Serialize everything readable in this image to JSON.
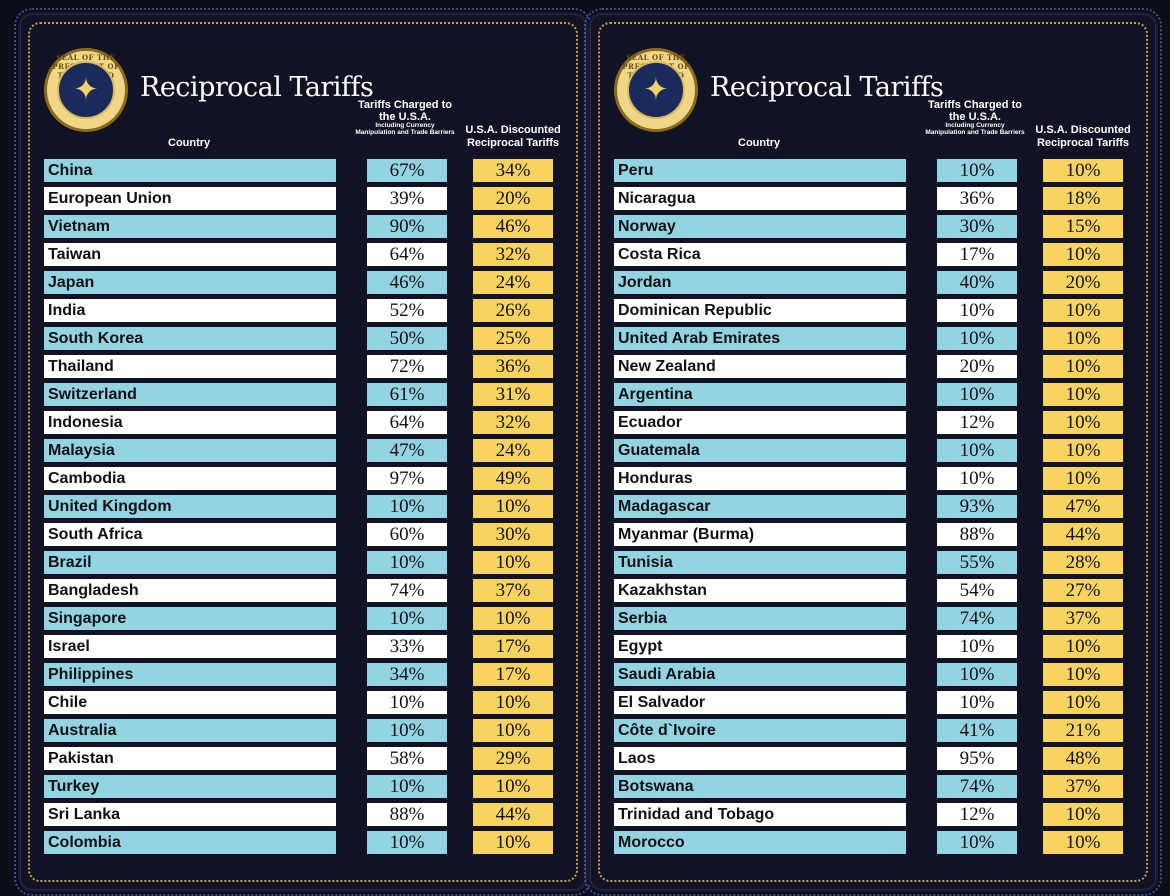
{
  "panels": [
    {
      "seal_text": "SEAL OF THE PRESIDENT OF THE UNITED STATES",
      "title": "Reciprocal Tariffs",
      "header": {
        "country": "Country",
        "charged_main": "Tariffs Charged to the U.S.A.",
        "charged_sub": "Including Currency Manipulation and Trade Barriers",
        "reciprocal": "U.S.A. Discounted Reciprocal Tariffs"
      },
      "rows": [
        {
          "country": "China",
          "charged": "67%",
          "reciprocal": "34%"
        },
        {
          "country": "European Union",
          "charged": "39%",
          "reciprocal": "20%"
        },
        {
          "country": "Vietnam",
          "charged": "90%",
          "reciprocal": "46%"
        },
        {
          "country": "Taiwan",
          "charged": "64%",
          "reciprocal": "32%"
        },
        {
          "country": "Japan",
          "charged": "46%",
          "reciprocal": "24%"
        },
        {
          "country": "India",
          "charged": "52%",
          "reciprocal": "26%"
        },
        {
          "country": "South Korea",
          "charged": "50%",
          "reciprocal": "25%"
        },
        {
          "country": "Thailand",
          "charged": "72%",
          "reciprocal": "36%"
        },
        {
          "country": "Switzerland",
          "charged": "61%",
          "reciprocal": "31%"
        },
        {
          "country": "Indonesia",
          "charged": "64%",
          "reciprocal": "32%"
        },
        {
          "country": "Malaysia",
          "charged": "47%",
          "reciprocal": "24%"
        },
        {
          "country": "Cambodia",
          "charged": "97%",
          "reciprocal": "49%"
        },
        {
          "country": "United Kingdom",
          "charged": "10%",
          "reciprocal": "10%"
        },
        {
          "country": "South Africa",
          "charged": "60%",
          "reciprocal": "30%"
        },
        {
          "country": "Brazil",
          "charged": "10%",
          "reciprocal": "10%"
        },
        {
          "country": "Bangladesh",
          "charged": "74%",
          "reciprocal": "37%"
        },
        {
          "country": "Singapore",
          "charged": "10%",
          "reciprocal": "10%"
        },
        {
          "country": "Israel",
          "charged": "33%",
          "reciprocal": "17%"
        },
        {
          "country": "Philippines",
          "charged": "34%",
          "reciprocal": "17%"
        },
        {
          "country": "Chile",
          "charged": "10%",
          "reciprocal": "10%"
        },
        {
          "country": "Australia",
          "charged": "10%",
          "reciprocal": "10%"
        },
        {
          "country": "Pakistan",
          "charged": "58%",
          "reciprocal": "29%"
        },
        {
          "country": "Turkey",
          "charged": "10%",
          "reciprocal": "10%"
        },
        {
          "country": "Sri Lanka",
          "charged": "88%",
          "reciprocal": "44%"
        },
        {
          "country": "Colombia",
          "charged": "10%",
          "reciprocal": "10%"
        }
      ]
    },
    {
      "seal_text": "SEAL OF THE PRESIDENT OF THE UNITED STATES",
      "title": "Reciprocal Tariffs",
      "header": {
        "country": "Country",
        "charged_main": "Tariffs Charged to the U.S.A.",
        "charged_sub": "Including Currency Manipulation and Trade Barriers",
        "reciprocal": "U.S.A. Discounted Reciprocal Tariffs"
      },
      "rows": [
        {
          "country": "Peru",
          "charged": "10%",
          "reciprocal": "10%"
        },
        {
          "country": "Nicaragua",
          "charged": "36%",
          "reciprocal": "18%"
        },
        {
          "country": "Norway",
          "charged": "30%",
          "reciprocal": "15%"
        },
        {
          "country": "Costa Rica",
          "charged": "17%",
          "reciprocal": "10%"
        },
        {
          "country": "Jordan",
          "charged": "40%",
          "reciprocal": "20%"
        },
        {
          "country": "Dominican Republic",
          "charged": "10%",
          "reciprocal": "10%"
        },
        {
          "country": "United Arab Emirates",
          "charged": "10%",
          "reciprocal": "10%"
        },
        {
          "country": "New Zealand",
          "charged": "20%",
          "reciprocal": "10%"
        },
        {
          "country": "Argentina",
          "charged": "10%",
          "reciprocal": "10%"
        },
        {
          "country": "Ecuador",
          "charged": "12%",
          "reciprocal": "10%"
        },
        {
          "country": "Guatemala",
          "charged": "10%",
          "reciprocal": "10%"
        },
        {
          "country": "Honduras",
          "charged": "10%",
          "reciprocal": "10%"
        },
        {
          "country": "Madagascar",
          "charged": "93%",
          "reciprocal": "47%"
        },
        {
          "country": "Myanmar (Burma)",
          "charged": "88%",
          "reciprocal": "44%"
        },
        {
          "country": "Tunisia",
          "charged": "55%",
          "reciprocal": "28%"
        },
        {
          "country": "Kazakhstan",
          "charged": "54%",
          "reciprocal": "27%"
        },
        {
          "country": "Serbia",
          "charged": "74%",
          "reciprocal": "37%"
        },
        {
          "country": "Egypt",
          "charged": "10%",
          "reciprocal": "10%"
        },
        {
          "country": "Saudi Arabia",
          "charged": "10%",
          "reciprocal": "10%"
        },
        {
          "country": "El Salvador",
          "charged": "10%",
          "reciprocal": "10%"
        },
        {
          "country": "Côte d`Ivoire",
          "charged": "41%",
          "reciprocal": "21%"
        },
        {
          "country": "Laos",
          "charged": "95%",
          "reciprocal": "48%"
        },
        {
          "country": "Botswana",
          "charged": "74%",
          "reciprocal": "37%"
        },
        {
          "country": "Trinidad and Tobago",
          "charged": "12%",
          "reciprocal": "10%"
        },
        {
          "country": "Morocco",
          "charged": "10%",
          "reciprocal": "10%"
        }
      ]
    }
  ],
  "colors": {
    "row_blue": "#93d3e2",
    "row_white": "#ffffff",
    "reciprocal_gold": "#f7d35f",
    "background": "#0c0d16"
  }
}
